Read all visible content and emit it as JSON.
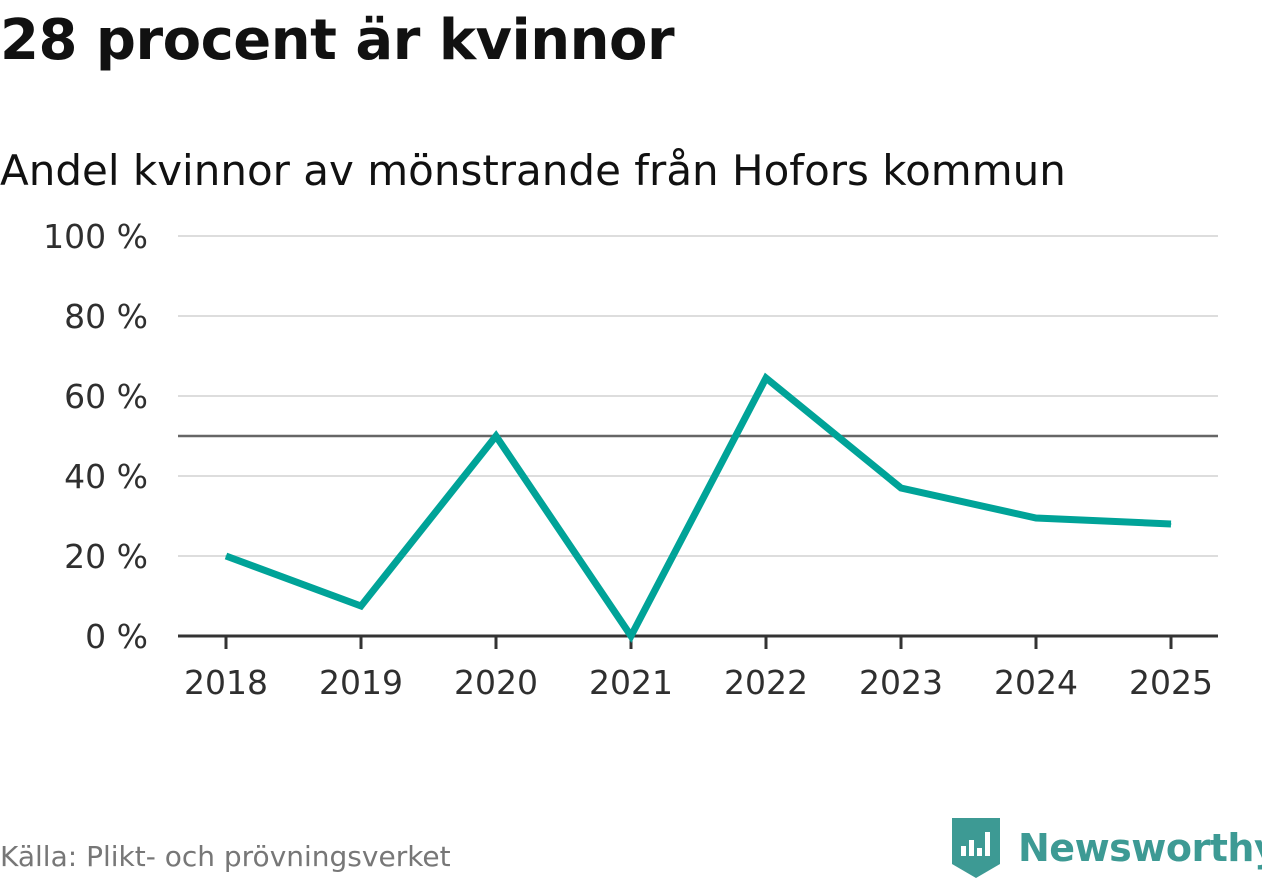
{
  "chart_data": {
    "type": "line",
    "title": "28 procent är kvinnor",
    "subtitle": "Andel kvinnor av mönstrande från Hofors kommun",
    "categories": [
      "2018",
      "2019",
      "2020",
      "2021",
      "2022",
      "2023",
      "2024",
      "2025"
    ],
    "series": [
      {
        "name": "Andel kvinnor",
        "values": [
          20,
          7.5,
          50,
          0,
          64.5,
          37,
          29.5,
          28
        ],
        "color": "#00a398"
      }
    ],
    "reference_line": {
      "value": 50,
      "color": "#666666"
    },
    "ylim": [
      0,
      100
    ],
    "yticks": [
      0,
      20,
      40,
      60,
      80,
      100
    ],
    "ytick_labels": [
      "0 %",
      "20 %",
      "40 %",
      "60 %",
      "80 %",
      "100 %"
    ],
    "grid": true,
    "gridline_color": "#dddddd",
    "axis_color": "#333333"
  },
  "source": "Källa: Plikt- och prövningsverket",
  "brand": {
    "name": "Newsworthy",
    "color": "#3d9a94",
    "logo_icon": "newsworthy-logo-icon"
  }
}
